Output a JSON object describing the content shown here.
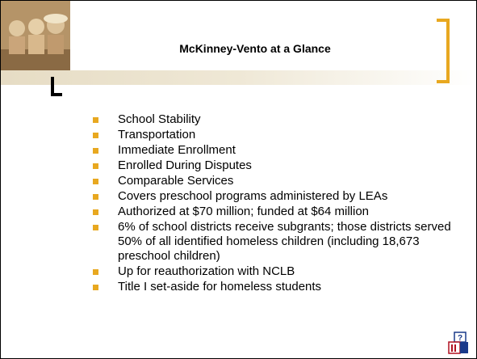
{
  "title": "McKinney-Vento at a Glance",
  "bullets": [
    "School Stability",
    "Transportation",
    "Immediate Enrollment",
    "Enrolled During Disputes",
    "Comparable Services",
    "Covers preschool programs administered by LEAs",
    "Authorized at $70 million; funded at $64 million",
    "6% of school districts receive subgrants; those districts served 50% of all identified homeless children (including 18,673 preschool children)",
    "Up for reauthorization with NCLB",
    "Title I set-aside for homeless students"
  ]
}
